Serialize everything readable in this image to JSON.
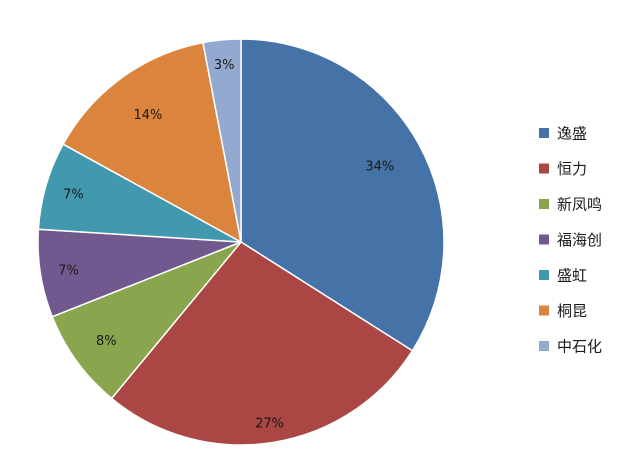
{
  "chart_data": {
    "type": "pie",
    "categories": [
      "逸盛",
      "恒力",
      "新凤鸣",
      "福海创",
      "盛虹",
      "桐昆",
      "中石化"
    ],
    "values": [
      34,
      27,
      8,
      7,
      7,
      14,
      3
    ],
    "value_labels": [
      "34%",
      "27%",
      "8%",
      "7%",
      "7%",
      "14%",
      "3%"
    ],
    "colors": [
      "#4572A7",
      "#AA4643",
      "#89A54E",
      "#71588F",
      "#4198AF",
      "#DB843D",
      "#93A9CF"
    ],
    "start_angle": "12 o'clock",
    "direction": "clockwise",
    "legend": "right",
    "title": "",
    "grid": false
  }
}
